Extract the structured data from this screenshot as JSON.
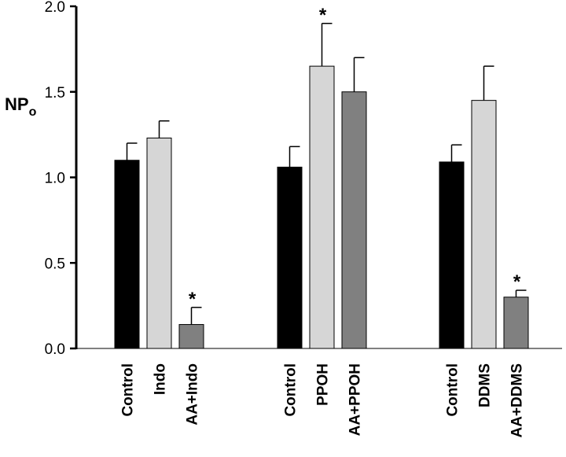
{
  "chart_data": {
    "type": "bar",
    "ylabel_main": "NP",
    "ylabel_sub": "o",
    "ylim": [
      0,
      2.0
    ],
    "yticks": [
      "0.0",
      "0.5",
      "1.0",
      "1.5",
      "2.0"
    ],
    "grid": false,
    "groups": [
      {
        "bars": [
          {
            "label": "Control",
            "value": 1.1,
            "error": 0.1,
            "color": "#000000",
            "significant": false
          },
          {
            "label": "Indo",
            "value": 1.23,
            "error": 0.1,
            "color": "#d6d6d6",
            "significant": false
          },
          {
            "label": "AA+Indo",
            "value": 0.14,
            "error": 0.1,
            "color": "#808080",
            "significant": true
          }
        ]
      },
      {
        "bars": [
          {
            "label": "Control",
            "value": 1.06,
            "error": 0.12,
            "color": "#000000",
            "significant": false
          },
          {
            "label": "PPOH",
            "value": 1.65,
            "error": 0.25,
            "color": "#d6d6d6",
            "significant": true
          },
          {
            "label": "AA+PPOH",
            "value": 1.5,
            "error": 0.2,
            "color": "#808080",
            "significant": false
          }
        ]
      },
      {
        "bars": [
          {
            "label": "Control",
            "value": 1.09,
            "error": 0.1,
            "color": "#000000",
            "significant": false
          },
          {
            "label": "DDMS",
            "value": 1.45,
            "error": 0.2,
            "color": "#d6d6d6",
            "significant": false
          },
          {
            "label": "AA+DDMS",
            "value": 0.3,
            "error": 0.04,
            "color": "#808080",
            "significant": true
          }
        ]
      }
    ],
    "significance_marker": "*"
  }
}
